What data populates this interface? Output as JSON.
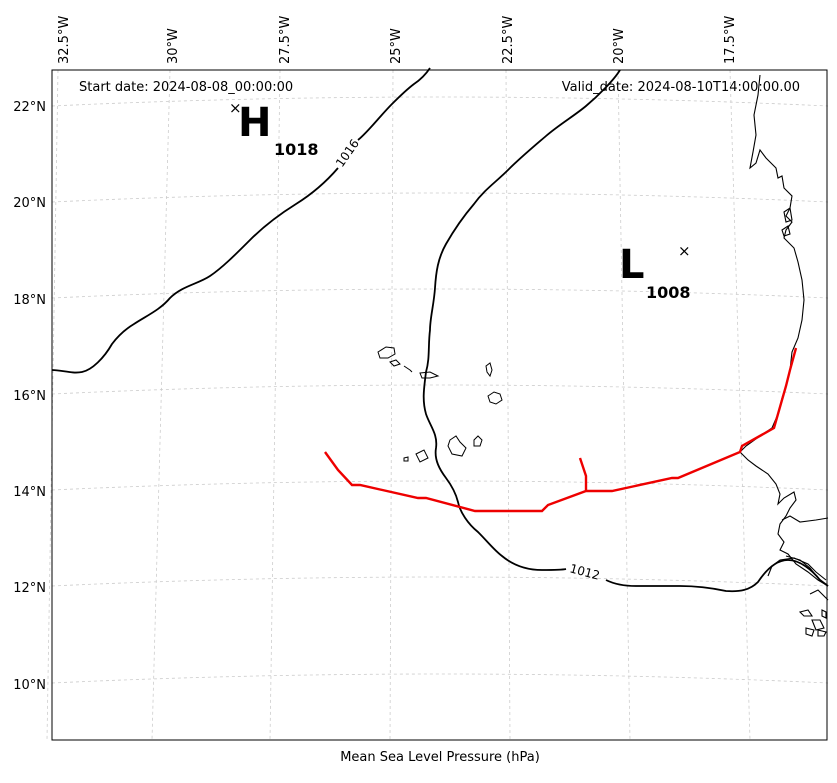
{
  "map": {
    "start_date": "Start date: 2024-08-08_00:00:00",
    "valid_date": "Valid_date: 2024-08-10T14:00:00.00",
    "xlabel": "Mean Sea Level Pressure (hPa)",
    "lon_labels": [
      "32.5°W",
      "30°W",
      "27.5°W",
      "25°W",
      "22.5°W",
      "20°W",
      "17.5°W"
    ],
    "lat_labels": [
      "22°N",
      "20°N",
      "18°N",
      "16°N",
      "14°N",
      "12°N",
      "10°N"
    ],
    "grid": true,
    "colors": {
      "contour": "#000000",
      "front": "#ee0000",
      "coast": "#000000",
      "grid": "#cccccc"
    }
  },
  "systems": {
    "high": {
      "symbol": "H",
      "value": "1018",
      "marker": "×"
    },
    "low": {
      "symbol": "L",
      "value": "1008",
      "marker": "×"
    }
  },
  "contours": {
    "c1016": {
      "label": "1016"
    },
    "c1012": {
      "label": "1012"
    }
  },
  "features": {
    "trough_line": "red-front-line",
    "coastline": "west-africa-coast",
    "islands": "cape-verde-islands"
  }
}
